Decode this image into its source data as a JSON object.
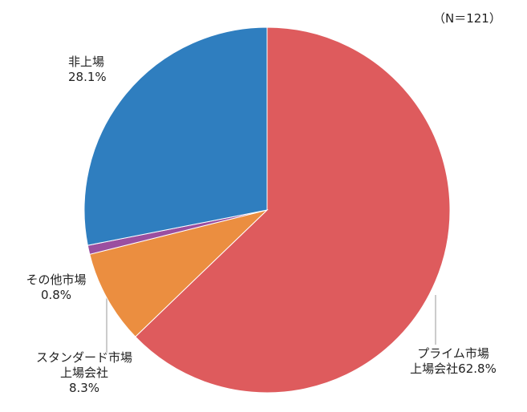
{
  "chart_data": {
    "type": "pie",
    "annotation": "（N＝121）",
    "categories": [
      "プライム市場\n上場会社",
      "スタンダード市場\n上場会社",
      "その他市場",
      "非上場"
    ],
    "values": [
      62.8,
      8.3,
      0.8,
      28.1
    ],
    "value_labels": [
      "62.8%",
      "8.3%",
      "0.8%",
      "28.1%"
    ],
    "colors": [
      "#de5b5d",
      "#eb8e40",
      "#9b4fa0",
      "#2f7ebf"
    ]
  }
}
